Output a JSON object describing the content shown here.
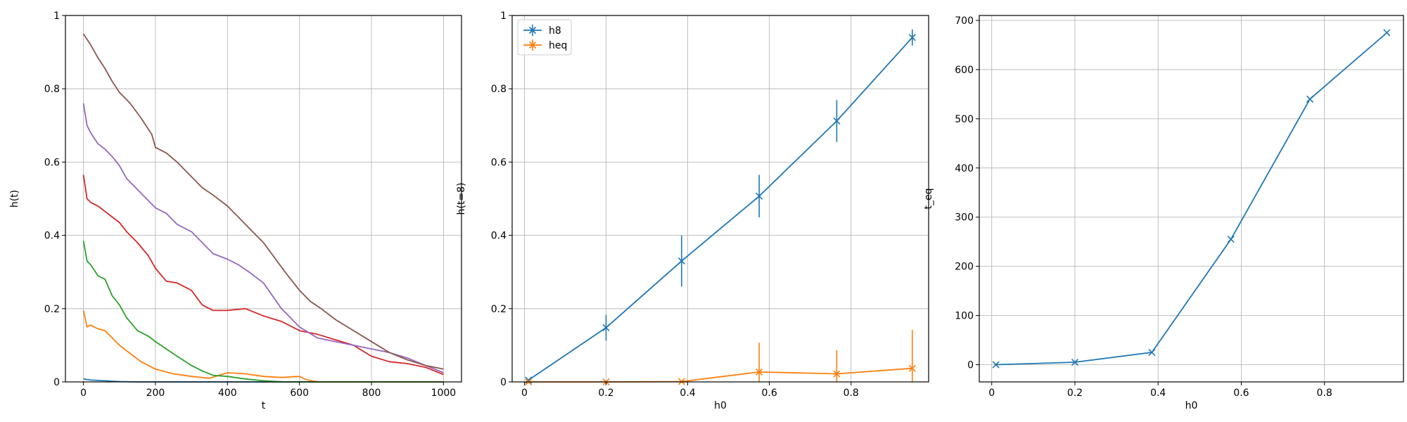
{
  "chart_data": [
    {
      "type": "line",
      "xlabel": "t",
      "ylabel": "h(t)",
      "xlim": [
        -50,
        1050
      ],
      "ylim": [
        0,
        1
      ],
      "xticks": [
        0,
        200,
        400,
        600,
        800,
        1000
      ],
      "yticks": [
        0.0,
        0.2,
        0.4,
        0.6,
        0.8,
        1.0
      ],
      "grid": true,
      "series": [
        {
          "color": "#1f77b4",
          "x": [
            0,
            20,
            40,
            60,
            80,
            100,
            150,
            200,
            1000
          ],
          "y": [
            0.008,
            0.005,
            0.004,
            0.003,
            0.002,
            0.001,
            0.0,
            0.0,
            0.0
          ]
        },
        {
          "color": "#ff7f0e",
          "x": [
            0,
            10,
            20,
            40,
            60,
            80,
            100,
            120,
            140,
            160,
            180,
            200,
            250,
            300,
            350,
            400,
            450,
            500,
            550,
            600,
            620,
            640,
            660,
            1000
          ],
          "y": [
            0.195,
            0.15,
            0.155,
            0.145,
            0.14,
            0.12,
            0.1,
            0.085,
            0.07,
            0.055,
            0.045,
            0.035,
            0.022,
            0.015,
            0.01,
            0.025,
            0.022,
            0.015,
            0.012,
            0.015,
            0.006,
            0.002,
            0.0,
            0.0
          ]
        },
        {
          "color": "#2ca02c",
          "x": [
            0,
            10,
            20,
            40,
            60,
            80,
            100,
            120,
            150,
            180,
            200,
            230,
            260,
            300,
            330,
            360,
            400,
            450,
            500,
            560,
            1000
          ],
          "y": [
            0.385,
            0.33,
            0.32,
            0.29,
            0.28,
            0.235,
            0.21,
            0.175,
            0.14,
            0.125,
            0.11,
            0.09,
            0.07,
            0.045,
            0.03,
            0.018,
            0.015,
            0.008,
            0.003,
            0.0,
            0.0
          ]
        },
        {
          "color": "#d62728",
          "x": [
            0,
            10,
            20,
            40,
            60,
            80,
            100,
            120,
            150,
            180,
            200,
            230,
            260,
            300,
            330,
            360,
            400,
            450,
            500,
            550,
            600,
            650,
            700,
            750,
            800,
            850,
            900,
            950,
            1000
          ],
          "y": [
            0.565,
            0.5,
            0.49,
            0.48,
            0.465,
            0.45,
            0.435,
            0.41,
            0.38,
            0.345,
            0.31,
            0.275,
            0.27,
            0.25,
            0.21,
            0.195,
            0.195,
            0.2,
            0.18,
            0.165,
            0.14,
            0.13,
            0.115,
            0.1,
            0.07,
            0.055,
            0.05,
            0.04,
            0.02
          ]
        },
        {
          "color": "#9467bd",
          "x": [
            0,
            10,
            20,
            40,
            60,
            80,
            100,
            120,
            150,
            180,
            200,
            230,
            260,
            300,
            330,
            360,
            400,
            430,
            460,
            500,
            550,
            600,
            650,
            700,
            750,
            800,
            850,
            900,
            950,
            1000
          ],
          "y": [
            0.76,
            0.7,
            0.68,
            0.65,
            0.635,
            0.615,
            0.59,
            0.555,
            0.525,
            0.495,
            0.475,
            0.46,
            0.43,
            0.41,
            0.38,
            0.35,
            0.335,
            0.32,
            0.3,
            0.27,
            0.2,
            0.15,
            0.12,
            0.11,
            0.1,
            0.09,
            0.08,
            0.065,
            0.045,
            0.025
          ]
        },
        {
          "color": "#8c564b",
          "x": [
            0,
            20,
            40,
            60,
            80,
            100,
            130,
            160,
            190,
            200,
            230,
            260,
            300,
            330,
            360,
            400,
            430,
            460,
            500,
            530,
            560,
            600,
            630,
            660,
            700,
            750,
            800,
            850,
            900,
            950,
            1000
          ],
          "y": [
            0.95,
            0.92,
            0.885,
            0.855,
            0.82,
            0.79,
            0.76,
            0.72,
            0.675,
            0.64,
            0.625,
            0.6,
            0.56,
            0.53,
            0.51,
            0.48,
            0.45,
            0.42,
            0.38,
            0.34,
            0.3,
            0.25,
            0.22,
            0.2,
            0.17,
            0.14,
            0.11,
            0.08,
            0.06,
            0.045,
            0.035
          ]
        }
      ]
    },
    {
      "type": "line",
      "xlabel": "h0",
      "ylabel": "h(t=8)",
      "xlim": [
        -0.03,
        0.99
      ],
      "ylim": [
        0,
        1
      ],
      "xticks": [
        0.0,
        0.2,
        0.4,
        0.6,
        0.8
      ],
      "yticks": [
        0.0,
        0.2,
        0.4,
        0.6,
        0.8,
        1.0
      ],
      "grid": true,
      "legend_position": "top-left",
      "series": [
        {
          "name": "h8",
          "color": "#1f77b4",
          "x": [
            0.01,
            0.2,
            0.385,
            0.575,
            0.765,
            0.95
          ],
          "y": [
            0.005,
            0.148,
            0.33,
            0.507,
            0.712,
            0.94
          ],
          "err": [
            0.0,
            0.035,
            0.07,
            0.058,
            0.057,
            0.022
          ]
        },
        {
          "name": "heq",
          "color": "#ff7f0e",
          "x": [
            0.01,
            0.2,
            0.385,
            0.575,
            0.765,
            0.95
          ],
          "y": [
            0.0,
            0.0,
            0.001,
            0.027,
            0.022,
            0.037
          ],
          "err": [
            0.0,
            0.0,
            0.001,
            0.08,
            0.065,
            0.105
          ]
        }
      ]
    },
    {
      "type": "line",
      "xlabel": "h0",
      "ylabel": "t_eq",
      "xlim": [
        -0.03,
        0.99
      ],
      "ylim": [
        -35,
        710
      ],
      "xticks": [
        0.0,
        0.2,
        0.4,
        0.6,
        0.8
      ],
      "yticks": [
        0,
        100,
        200,
        300,
        400,
        500,
        600,
        700
      ],
      "grid": true,
      "series": [
        {
          "color": "#1f77b4",
          "x": [
            0.01,
            0.2,
            0.385,
            0.575,
            0.765,
            0.95
          ],
          "y": [
            0,
            5,
            25,
            255,
            540,
            675
          ]
        }
      ]
    }
  ]
}
